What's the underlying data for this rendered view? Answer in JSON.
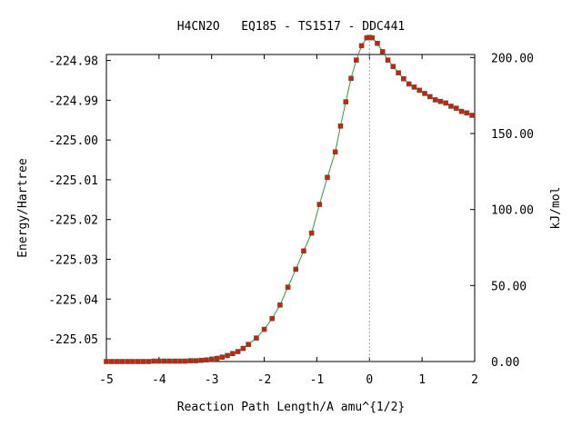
{
  "chart_data": {
    "type": "line",
    "title": "H4CN2O   EQ185 - TS1517 - DDC441",
    "xlabel": "Reaction Path Length/A amu^{1/2}",
    "ylabel": "Energy/Hartree",
    "y2label": "kJ/mol",
    "xlim": [
      -5,
      2
    ],
    "ylim": [
      -225.0557,
      -224.9785
    ],
    "y2lim": [
      0,
      202
    ],
    "x_ticks": [
      -5,
      -4,
      -3,
      -2,
      -1,
      0,
      1,
      2
    ],
    "x_tick_labels": [
      "-5",
      "-4",
      "-3",
      "-2",
      "-1",
      "0",
      "1",
      "2"
    ],
    "y_ticks": [
      -224.98,
      -224.99,
      -225.0,
      -225.01,
      -225.02,
      -225.03,
      -225.04,
      -225.05
    ],
    "y_tick_labels": [
      "-224.98",
      "-224.99",
      "-225.00",
      "-225.01",
      "-225.02",
      "-225.03",
      "-225.04",
      "-225.05"
    ],
    "y2_ticks": [
      0,
      50,
      100,
      150,
      200
    ],
    "y2_tick_labels": [
      "0.00",
      "50.00",
      "100.00",
      "150.00",
      "200.00"
    ],
    "ts_x": 0,
    "line_color": "#2e9e2e",
    "marker_color": "#cc2200",
    "marker_edge_color": "#555555",
    "ts_line_color": "#999999",
    "grid": false,
    "series": [
      {
        "x": [
          -5.0,
          -4.9,
          -4.8,
          -4.7,
          -4.6,
          -4.5,
          -4.4,
          -4.3,
          -4.2,
          -4.1,
          -4.0,
          -3.9,
          -3.8,
          -3.7,
          -3.6,
          -3.5,
          -3.4,
          -3.3,
          -3.2,
          -3.1,
          -3.0,
          -2.9,
          -2.8,
          -2.7,
          -2.6,
          -2.5,
          -2.4,
          -2.3,
          -2.15,
          -2.0,
          -1.85,
          -1.7,
          -1.55,
          -1.4,
          -1.25,
          -1.1,
          -0.95,
          -0.8,
          -0.65,
          -0.55,
          -0.45,
          -0.35,
          -0.25,
          -0.15,
          -0.05,
          0.0,
          0.05,
          0.15,
          0.25,
          0.35,
          0.45,
          0.55,
          0.65,
          0.75,
          0.85,
          0.95,
          1.05,
          1.15,
          1.25,
          1.35,
          1.45,
          1.55,
          1.65,
          1.75,
          1.85,
          1.95
        ],
        "y": [
          -225.0557,
          -225.0557,
          -225.0557,
          -225.0557,
          -225.0557,
          -225.0557,
          -225.0557,
          -225.0557,
          -225.0557,
          -225.0556,
          -225.0556,
          -225.0556,
          -225.0556,
          -225.0556,
          -225.0556,
          -225.0556,
          -225.0555,
          -225.0555,
          -225.0554,
          -225.0553,
          -225.0551,
          -225.0549,
          -225.0546,
          -225.0542,
          -225.0537,
          -225.0532,
          -225.0524,
          -225.0514,
          -225.0498,
          -225.0476,
          -225.0449,
          -225.0415,
          -225.037,
          -225.0325,
          -225.0279,
          -225.0234,
          -225.0162,
          -225.0094,
          -225.003,
          -224.9965,
          -224.9904,
          -224.9845,
          -224.9799,
          -224.9763,
          -224.9743,
          -224.9742,
          -224.9743,
          -224.9757,
          -224.9778,
          -224.9799,
          -224.9815,
          -224.9831,
          -224.9846,
          -224.9859,
          -224.9867,
          -224.9875,
          -224.9883,
          -224.9891,
          -224.9899,
          -224.9903,
          -224.9907,
          -224.9915,
          -224.992,
          -224.9928,
          -224.9932,
          -224.9938
        ]
      }
    ]
  }
}
